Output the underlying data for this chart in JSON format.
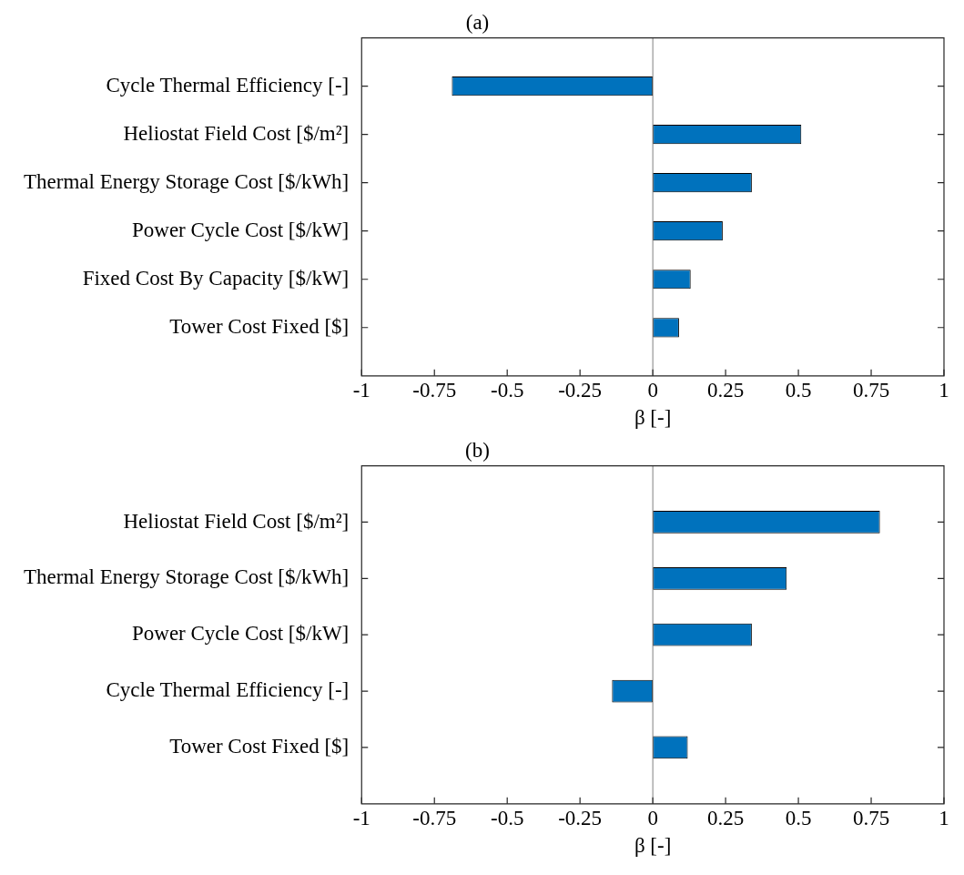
{
  "chart_data": [
    {
      "type": "bar",
      "orientation": "horizontal",
      "title": "(a)",
      "xlabel": "β [-]",
      "categories": [
        "Cycle Thermal Efficiency [-]",
        "Heliostat Field Cost [$/m²]",
        "Thermal Energy Storage Cost [$/kWh]",
        "Power Cycle Cost [$/kW]",
        "Fixed Cost By Capacity [$/kW]",
        "Tower Cost Fixed [$]"
      ],
      "values": [
        -0.69,
        0.51,
        0.34,
        0.24,
        0.13,
        0.09
      ],
      "color": "#0072bd",
      "xlim": [
        -1,
        1
      ],
      "xticks": [
        -1,
        -0.75,
        -0.5,
        -0.25,
        0,
        0.25,
        0.5,
        0.75,
        1
      ],
      "ref_lines": [
        {
          "axis": "x",
          "value": 0,
          "color": "#808080"
        }
      ],
      "grid": false,
      "legend": false
    },
    {
      "type": "bar",
      "orientation": "horizontal",
      "title": "(b)",
      "xlabel": "β [-]",
      "categories": [
        "Heliostat Field Cost [$/m²]",
        "Thermal Energy Storage Cost [$/kWh]",
        "Power Cycle Cost [$/kW]",
        "Cycle Thermal Efficiency [-]",
        "Tower Cost Fixed [$]"
      ],
      "values": [
        0.78,
        0.46,
        0.34,
        -0.14,
        0.12
      ],
      "color": "#0072bd",
      "xlim": [
        -1,
        1
      ],
      "xticks": [
        -1,
        -0.75,
        -0.5,
        -0.25,
        0,
        0.25,
        0.5,
        0.75,
        1
      ],
      "ref_lines": [
        {
          "axis": "x",
          "value": 0,
          "color": "#808080"
        }
      ],
      "grid": false,
      "legend": false
    }
  ]
}
